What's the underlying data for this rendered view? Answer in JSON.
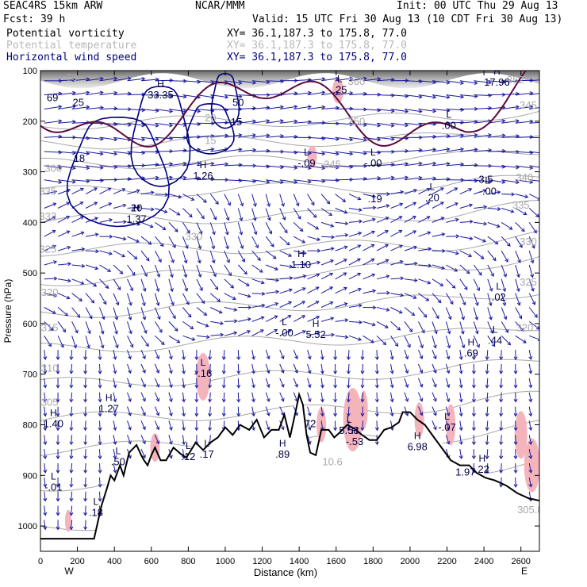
{
  "header": {
    "model": "SEAC4RS 15km ARW",
    "org": "NCAR/MMM",
    "init": "Init: 00 UTC Thu 29 Aug 13",
    "fcst": "Fcst:    39 h",
    "valid": "Valid: 15 UTC Fri 30 Aug 13 (10 CDT Fri 30 Aug 13)",
    "fields": [
      {
        "name": "Potential vorticity",
        "xy": "XY=  36.1,187.3 to 175.8, 77.0",
        "color": "#000000"
      },
      {
        "name": "Potential temperature",
        "xy": "XY=  36.1,187.3 to 175.8, 77.0",
        "color": "#b8b8b8"
      },
      {
        "name": "Horizontal wind speed",
        "xy": "XY=  36.1,187.3 to 175.8, 77.0",
        "color": "#000080"
      }
    ]
  },
  "colors": {
    "theta": "#a8a8a8",
    "wind": "#1a1aa0",
    "pv_thick": "#5a0a40",
    "pv_shade": "#f4b4bc",
    "terrain": "#000000",
    "speed": "#000080"
  },
  "chart_data": {
    "type": "cross-section",
    "title": "",
    "xlabel": "Distance (km)",
    "ylabel": "Pressure (hPa)",
    "xlim": [
      0,
      2700
    ],
    "ylim": [
      1050,
      100
    ],
    "x_ticks": [
      0,
      200,
      400,
      600,
      800,
      1000,
      1200,
      1400,
      1600,
      1800,
      2000,
      2200,
      2400,
      2600
    ],
    "y_ticks": [
      100,
      200,
      300,
      400,
      500,
      600,
      700,
      800,
      900,
      1000
    ],
    "x_end_labels": {
      "left": "W",
      "right": "E"
    },
    "terrain_pressure": [
      [
        0,
        1025
      ],
      [
        290,
        1025
      ],
      [
        330,
        960
      ],
      [
        360,
        925
      ],
      [
        380,
        900
      ],
      [
        400,
        910
      ],
      [
        430,
        880
      ],
      [
        450,
        900
      ],
      [
        480,
        855
      ],
      [
        520,
        840
      ],
      [
        545,
        860
      ],
      [
        560,
        870
      ],
      [
        580,
        880
      ],
      [
        600,
        860
      ],
      [
        620,
        845
      ],
      [
        650,
        870
      ],
      [
        680,
        870
      ],
      [
        720,
        845
      ],
      [
        760,
        858
      ],
      [
        790,
        865
      ],
      [
        840,
        835
      ],
      [
        880,
        850
      ],
      [
        920,
        835
      ],
      [
        960,
        825
      ],
      [
        1000,
        805
      ],
      [
        1040,
        820
      ],
      [
        1080,
        800
      ],
      [
        1130,
        810
      ],
      [
        1170,
        790
      ],
      [
        1210,
        825
      ],
      [
        1250,
        810
      ],
      [
        1290,
        810
      ],
      [
        1320,
        780
      ],
      [
        1350,
        825
      ],
      [
        1380,
        775
      ],
      [
        1400,
        740
      ],
      [
        1420,
        760
      ],
      [
        1440,
        820
      ],
      [
        1460,
        855
      ],
      [
        1490,
        860
      ],
      [
        1520,
        810
      ],
      [
        1560,
        810
      ],
      [
        1590,
        825
      ],
      [
        1620,
        815
      ],
      [
        1660,
        800
      ],
      [
        1700,
        808
      ],
      [
        1740,
        820
      ],
      [
        1780,
        830
      ],
      [
        1820,
        830
      ],
      [
        1860,
        810
      ],
      [
        1900,
        805
      ],
      [
        1940,
        795
      ],
      [
        1960,
        775
      ],
      [
        2000,
        775
      ],
      [
        2040,
        790
      ],
      [
        2080,
        800
      ],
      [
        2130,
        825
      ],
      [
        2180,
        850
      ],
      [
        2220,
        870
      ],
      [
        2270,
        880
      ],
      [
        2320,
        880
      ],
      [
        2360,
        895
      ],
      [
        2410,
        905
      ],
      [
        2460,
        910
      ],
      [
        2520,
        920
      ],
      [
        2580,
        935
      ],
      [
        2640,
        945
      ],
      [
        2700,
        950
      ]
    ],
    "theta_labels": [
      {
        "x": 70,
        "p": 300,
        "text": "300"
      },
      {
        "x": 40,
        "p": 345,
        "text": "335"
      },
      {
        "x": 40,
        "p": 395,
        "text": "333"
      },
      {
        "x": 40,
        "p": 460,
        "text": "325"
      },
      {
        "x": 50,
        "p": 545,
        "text": "320"
      },
      {
        "x": 50,
        "p": 615,
        "text": "315"
      },
      {
        "x": 50,
        "p": 695,
        "text": "310"
      },
      {
        "x": 50,
        "p": 762,
        "text": "305"
      },
      {
        "x": 170,
        "p": 120,
        "text": "70"
      },
      {
        "x": 920,
        "p": 200,
        "text": "20"
      },
      {
        "x": 920,
        "p": 245,
        "text": "15"
      },
      {
        "x": 1710,
        "p": 128,
        "text": "360"
      },
      {
        "x": 1710,
        "p": 207,
        "text": "350"
      },
      {
        "x": 1580,
        "p": 292,
        "text": "345"
      },
      {
        "x": 2570,
        "p": 125,
        "text": "352"
      },
      {
        "x": 2640,
        "p": 175,
        "text": "345"
      },
      {
        "x": 2620,
        "p": 318,
        "text": "340"
      },
      {
        "x": 2600,
        "p": 373,
        "text": "335"
      },
      {
        "x": 2640,
        "p": 445,
        "text": "330"
      },
      {
        "x": 2640,
        "p": 525,
        "text": "325"
      },
      {
        "x": 2620,
        "p": 615,
        "text": "320"
      },
      {
        "x": 1580,
        "p": 880,
        "text": "10.6"
      },
      {
        "x": 2650,
        "p": 975,
        "text": "305.8"
      },
      {
        "x": 830,
        "p": 435,
        "text": "330"
      }
    ],
    "extrema_labels": [
      {
        "x": 65,
        "p": 160,
        "kind": "",
        "value": "69"
      },
      {
        "x": 205,
        "p": 170,
        "kind": "",
        "value": "25"
      },
      {
        "x": 210,
        "p": 280,
        "kind": "",
        "value": "18"
      },
      {
        "x": 650,
        "p": 155,
        "kind": "H",
        "value": "33.35"
      },
      {
        "x": 1070,
        "p": 170,
        "kind": "",
        "value": "50"
      },
      {
        "x": 1060,
        "p": 208,
        "kind": "",
        "value": "15"
      },
      {
        "x": 880,
        "p": 315,
        "kind": "H",
        "value": "1.26"
      },
      {
        "x": 520,
        "p": 400,
        "kind": "H",
        "value": "1.37"
      },
      {
        "x": 520,
        "p": 378,
        "kind": "",
        "value": "20"
      },
      {
        "x": 1440,
        "p": 290,
        "kind": "L",
        "value": "-.09"
      },
      {
        "x": 1620,
        "p": 145,
        "kind": "L",
        "value": ".25"
      },
      {
        "x": 1800,
        "p": 290,
        "kind": "L",
        "value": "-.00"
      },
      {
        "x": 1810,
        "p": 360,
        "kind": "",
        "value": ".19"
      },
      {
        "x": 2120,
        "p": 358,
        "kind": "L",
        "value": ".20"
      },
      {
        "x": 2210,
        "p": 215,
        "kind": "L",
        "value": ".00"
      },
      {
        "x": 2470,
        "p": 130,
        "kind": "H",
        "value": "17.96"
      },
      {
        "x": 2420,
        "p": 345,
        "kind": "L",
        "value": "-.00"
      },
      {
        "x": 2410,
        "p": 322,
        "kind": "",
        "value": "3.5"
      },
      {
        "x": 1410,
        "p": 490,
        "kind": "H",
        "value": "1.10"
      },
      {
        "x": 1320,
        "p": 625,
        "kind": "L",
        "value": "-.00"
      },
      {
        "x": 1490,
        "p": 628,
        "kind": "H",
        "value": "5.52"
      },
      {
        "x": 2480,
        "p": 555,
        "kind": "L",
        "value": ".02"
      },
      {
        "x": 2460,
        "p": 640,
        "kind": "L",
        "value": ".44"
      },
      {
        "x": 2330,
        "p": 665,
        "kind": "H",
        "value": ".69"
      },
      {
        "x": 880,
        "p": 705,
        "kind": "L",
        "value": "-.16"
      },
      {
        "x": 370,
        "p": 775,
        "kind": "H",
        "value": "1.27"
      },
      {
        "x": 70,
        "p": 805,
        "kind": "H",
        "value": "1.40"
      },
      {
        "x": 420,
        "p": 880,
        "kind": "L",
        "value": ".50"
      },
      {
        "x": 800,
        "p": 870,
        "kind": "L",
        "value": ".12"
      },
      {
        "x": 900,
        "p": 865,
        "kind": "L",
        "value": ".17"
      },
      {
        "x": 1310,
        "p": 865,
        "kind": "H",
        "value": ".89"
      },
      {
        "x": 1460,
        "p": 805,
        "kind": "",
        "value": "72"
      },
      {
        "x": 1700,
        "p": 840,
        "kind": "H",
        "value": "-.53"
      },
      {
        "x": 1670,
        "p": 818,
        "kind": "L",
        "value": "5.58"
      },
      {
        "x": 2040,
        "p": 850,
        "kind": "H",
        "value": "6.98"
      },
      {
        "x": 2200,
        "p": 812,
        "kind": "L",
        "value": "-.07"
      },
      {
        "x": 2300,
        "p": 900,
        "kind": "",
        "value": "1.97"
      },
      {
        "x": 2390,
        "p": 895,
        "kind": "H",
        "value": ".22"
      },
      {
        "x": 70,
        "p": 930,
        "kind": "L",
        "value": "-.01"
      },
      {
        "x": 300,
        "p": 980,
        "kind": "L",
        "value": ".18"
      }
    ]
  }
}
